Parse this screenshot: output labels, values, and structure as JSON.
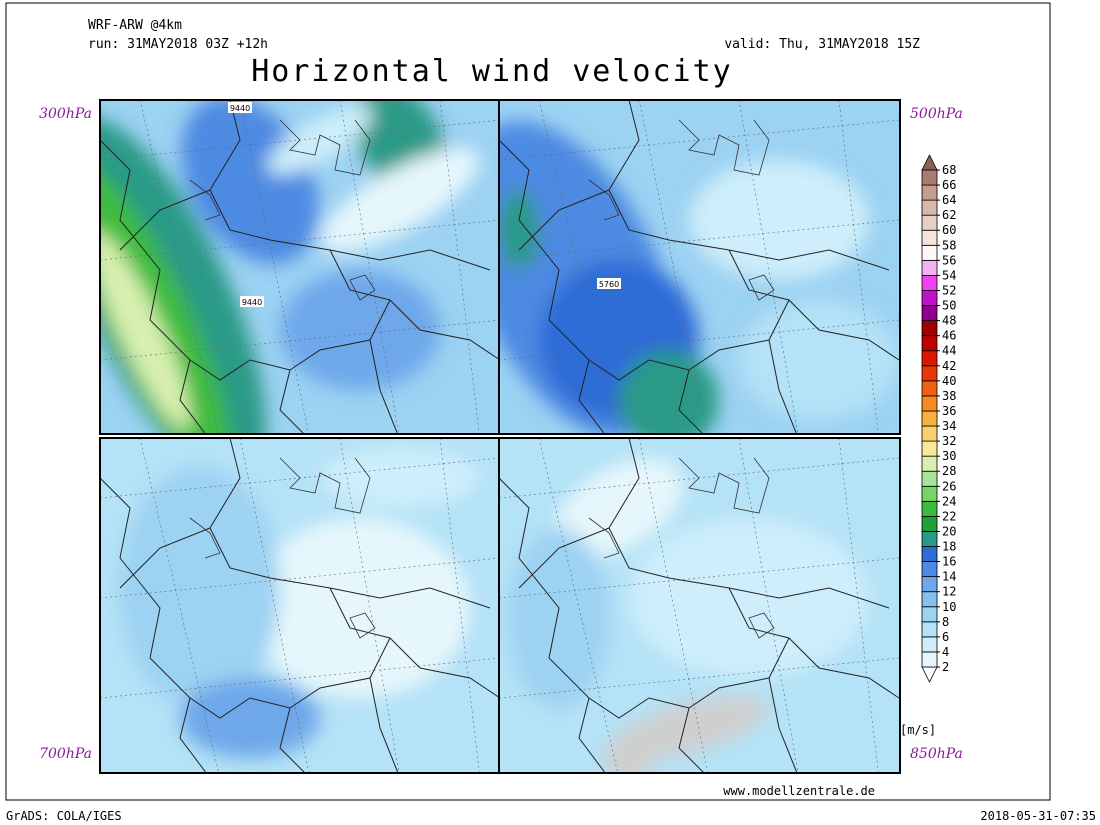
{
  "header": {
    "model": "WRF-ARW @4km",
    "run": "run: 31MAY2018 03Z +12h",
    "valid": "valid: Thu, 31MAY2018 15Z",
    "title": "Horizontal wind velocity"
  },
  "panels": [
    {
      "label": "300hPa",
      "contour_labels": [
        "9440",
        "9440"
      ]
    },
    {
      "label": "500hPa",
      "contour_labels": [
        "5760"
      ]
    },
    {
      "label": "700hPa",
      "contour_labels": []
    },
    {
      "label": "850hPa",
      "contour_labels": []
    }
  ],
  "colorbar": {
    "unit": "[m/s]",
    "ticks": [
      2,
      4,
      6,
      8,
      10,
      12,
      14,
      16,
      18,
      20,
      22,
      24,
      26,
      28,
      30,
      32,
      34,
      36,
      38,
      40,
      42,
      44,
      46,
      48,
      50,
      52,
      54,
      56,
      58,
      60,
      62,
      64,
      66,
      68
    ],
    "colors": [
      "#ffffff",
      "#e6f7fc",
      "#cdeefa",
      "#b4e2f6",
      "#9cd2f2",
      "#86c0ee",
      "#6ea8ea",
      "#4e8ae2",
      "#2e6cd6",
      "#2a9a86",
      "#1ea03a",
      "#3cbc3c",
      "#78d468",
      "#a8e498",
      "#d8f0b0",
      "#f8e89a",
      "#f8d070",
      "#f8b040",
      "#f48a20",
      "#f06010",
      "#e83808",
      "#d81800",
      "#c00000",
      "#a00000",
      "#8c0090",
      "#c010c8",
      "#f040f0",
      "#f4b0f0",
      "#fff8f8",
      "#f4e4dc",
      "#e8cfc4",
      "#d8b8ac",
      "#c49c90",
      "#a87c70",
      "#8a6054"
    ]
  },
  "footer": {
    "website": "www.modellzentrale.de",
    "software": "GrADS: COLA/IGES",
    "timestamp": "2018-05-31-07:35"
  }
}
